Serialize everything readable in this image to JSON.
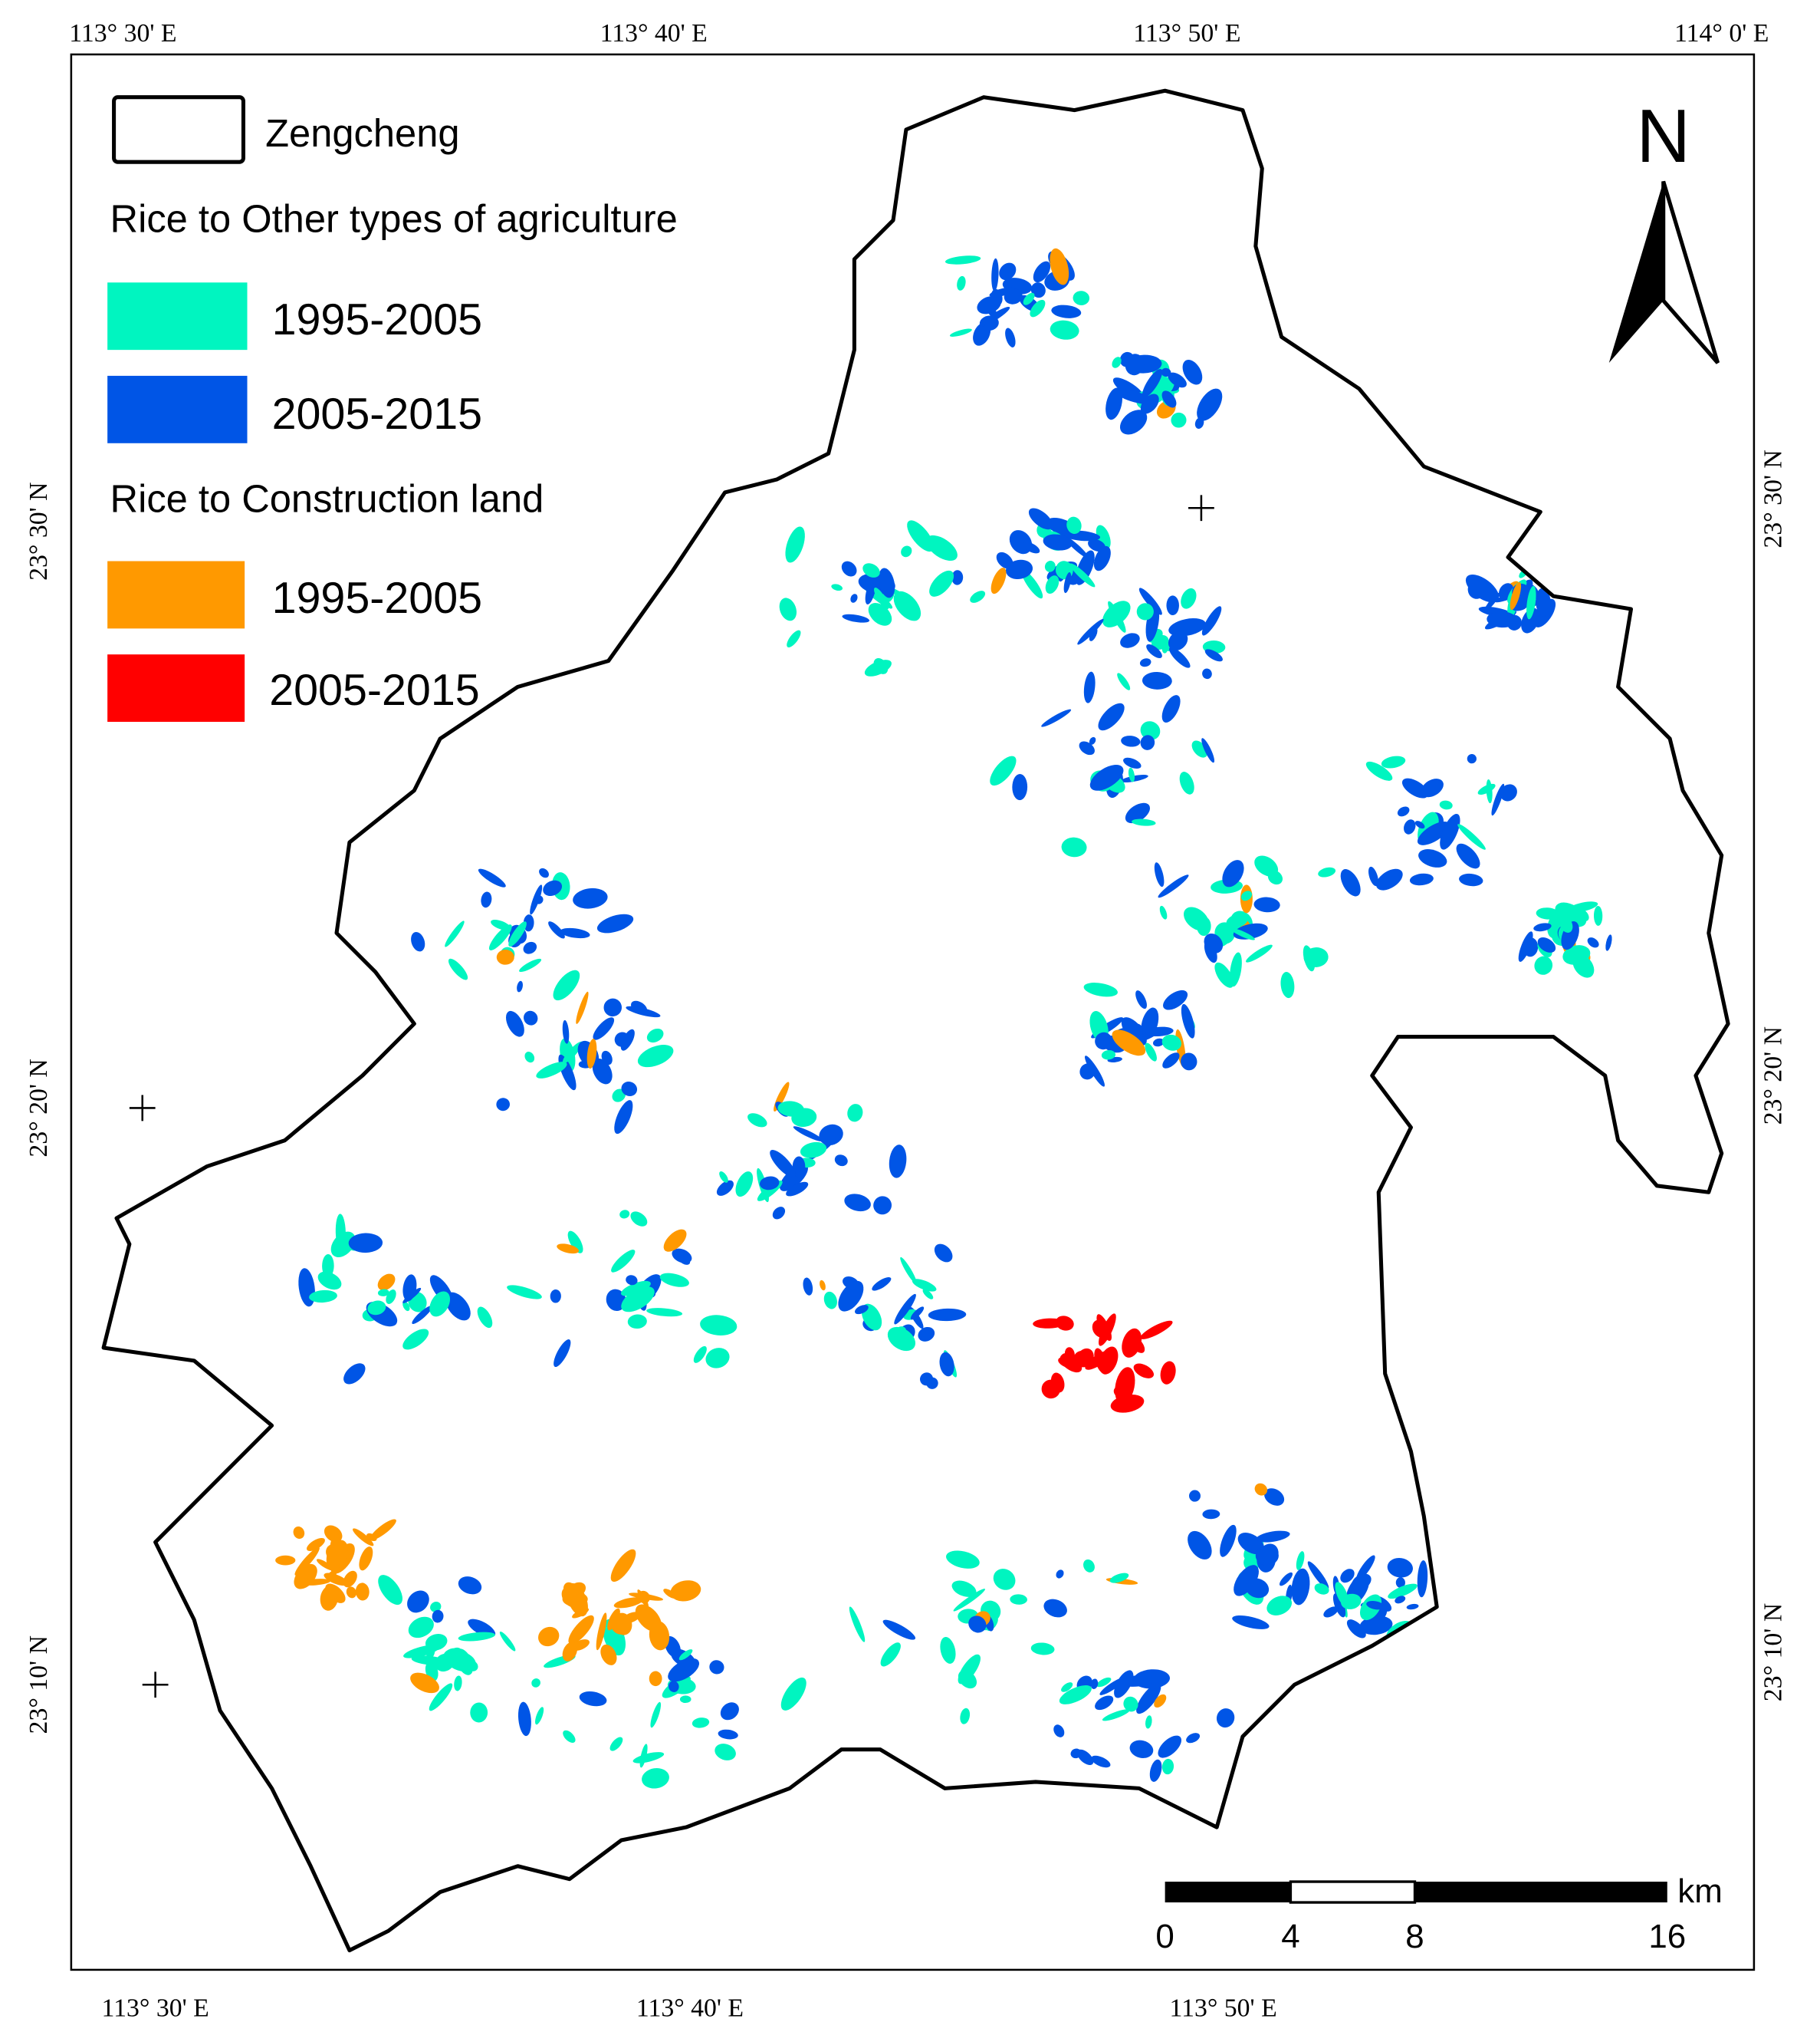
{
  "legend": {
    "boundary": "Zengcheng",
    "groups": [
      {
        "title": "Rice to Other types of agriculture",
        "items": [
          {
            "label": "1995-2005",
            "color": "#00f5c0"
          },
          {
            "label": "2005-2015",
            "color": "#0055e6"
          }
        ]
      },
      {
        "title": "Rice to Construction land",
        "items": [
          {
            "label": "1995-2005",
            "color": "#ff9900"
          },
          {
            "label": "2005-2015",
            "color": "#ff0000"
          }
        ]
      }
    ]
  },
  "north": "N",
  "scale_bar": {
    "unit": "km",
    "labels": [
      "0",
      "4",
      "8",
      "16"
    ]
  },
  "graticule": {
    "top": [
      "113° 30' E",
      "113° 40' E",
      "113° 50' E",
      "114° 0' E"
    ],
    "bottom": [
      "113° 30' E",
      "113° 40' E",
      "113° 50' E"
    ],
    "left": [
      "23° 30' N",
      "23° 20' N",
      "23° 10' N"
    ],
    "right": [
      "23° 30' N",
      "23° 20' N",
      "23° 10' N"
    ]
  }
}
